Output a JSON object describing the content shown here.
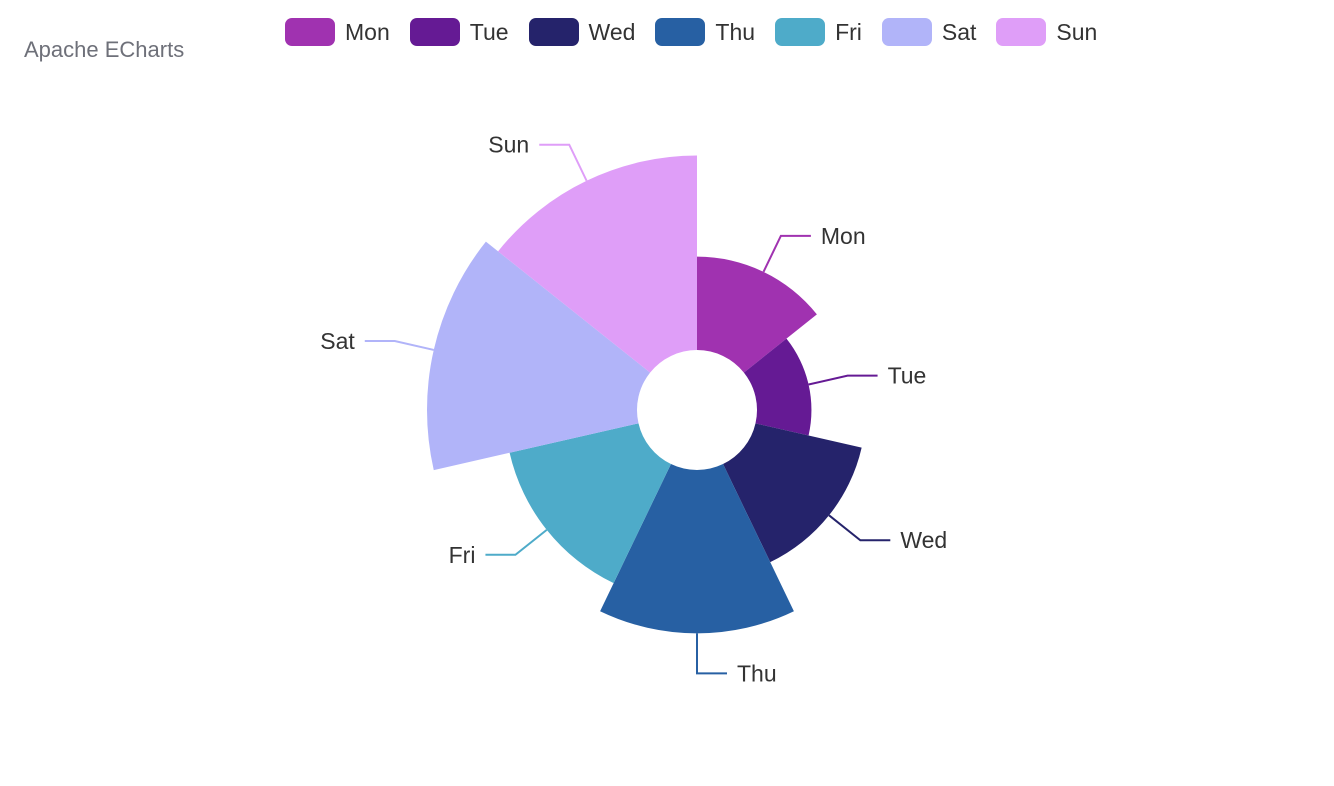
{
  "title": "Apache ECharts",
  "chart_data": {
    "type": "pie",
    "rose_type": "radius",
    "title": "Apache ECharts",
    "legend_position": "top-center",
    "categories": [
      "Mon",
      "Tue",
      "Wed",
      "Thu",
      "Fri",
      "Sat",
      "Sun"
    ],
    "values": [
      120,
      70,
      140,
      210,
      170,
      270,
      250
    ],
    "colors": [
      "#a032b0",
      "#651a94",
      "#25236b",
      "#2760a3",
      "#4eabc9",
      "#b1b4f9",
      "#df9ef8"
    ]
  }
}
